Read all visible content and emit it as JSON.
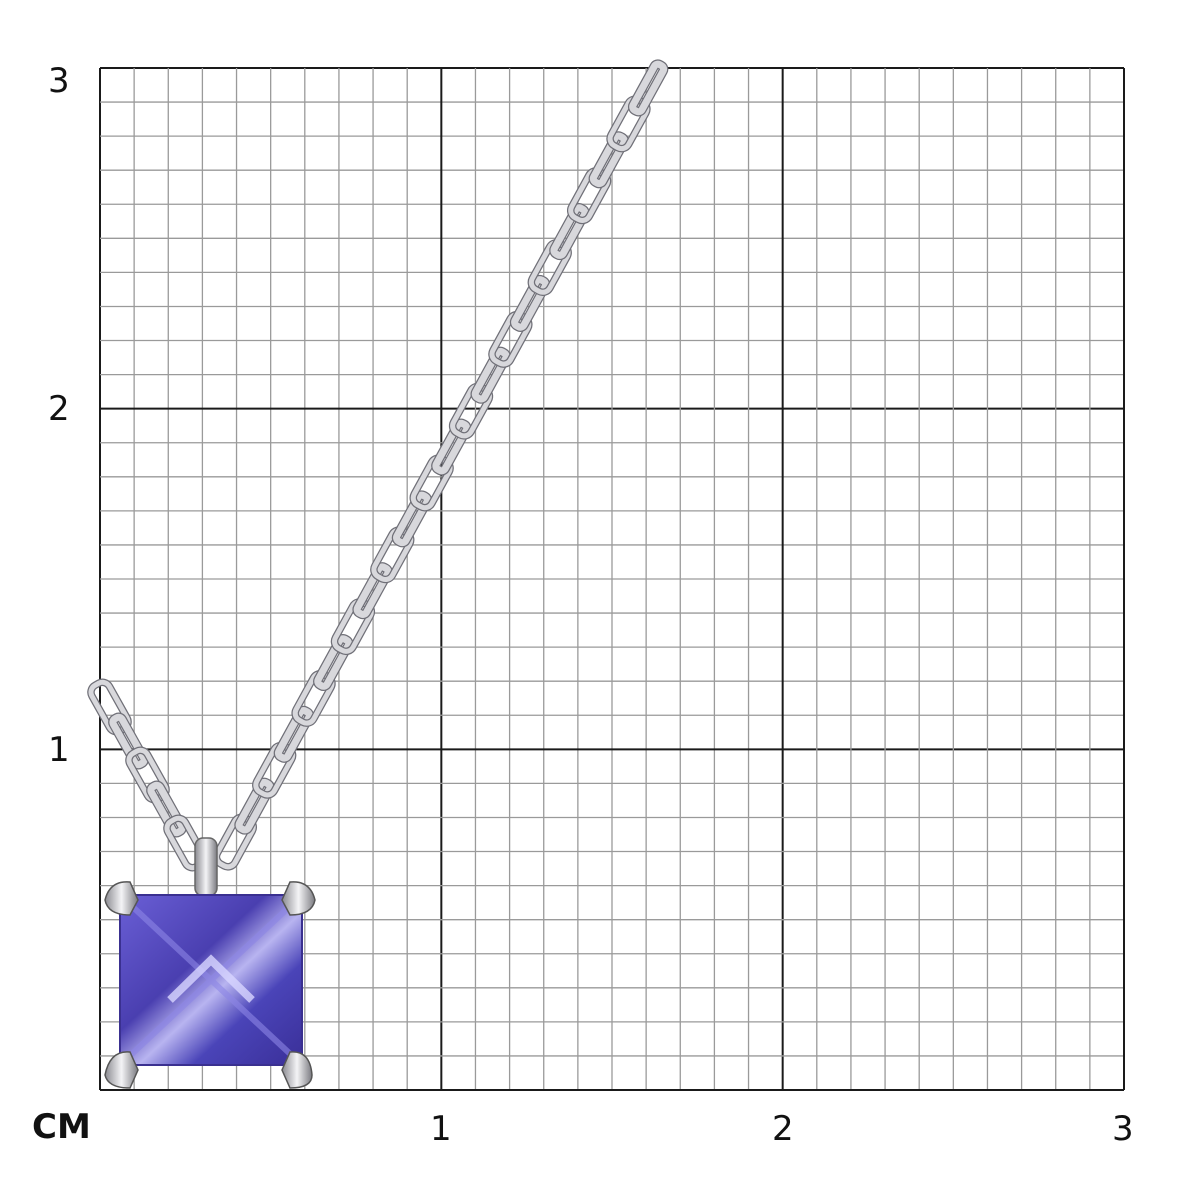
{
  "scale": {
    "unit_label": "CM",
    "x_ticks": [
      "1",
      "2",
      "3"
    ],
    "y_ticks": [
      "3",
      "2",
      "1"
    ],
    "grid_major_color": "#1a1a1a",
    "grid_minor_color": "#9a9a9a"
  },
  "product": {
    "gem_color": "#5a4fc0",
    "metal_color": "#d8d8dc"
  }
}
